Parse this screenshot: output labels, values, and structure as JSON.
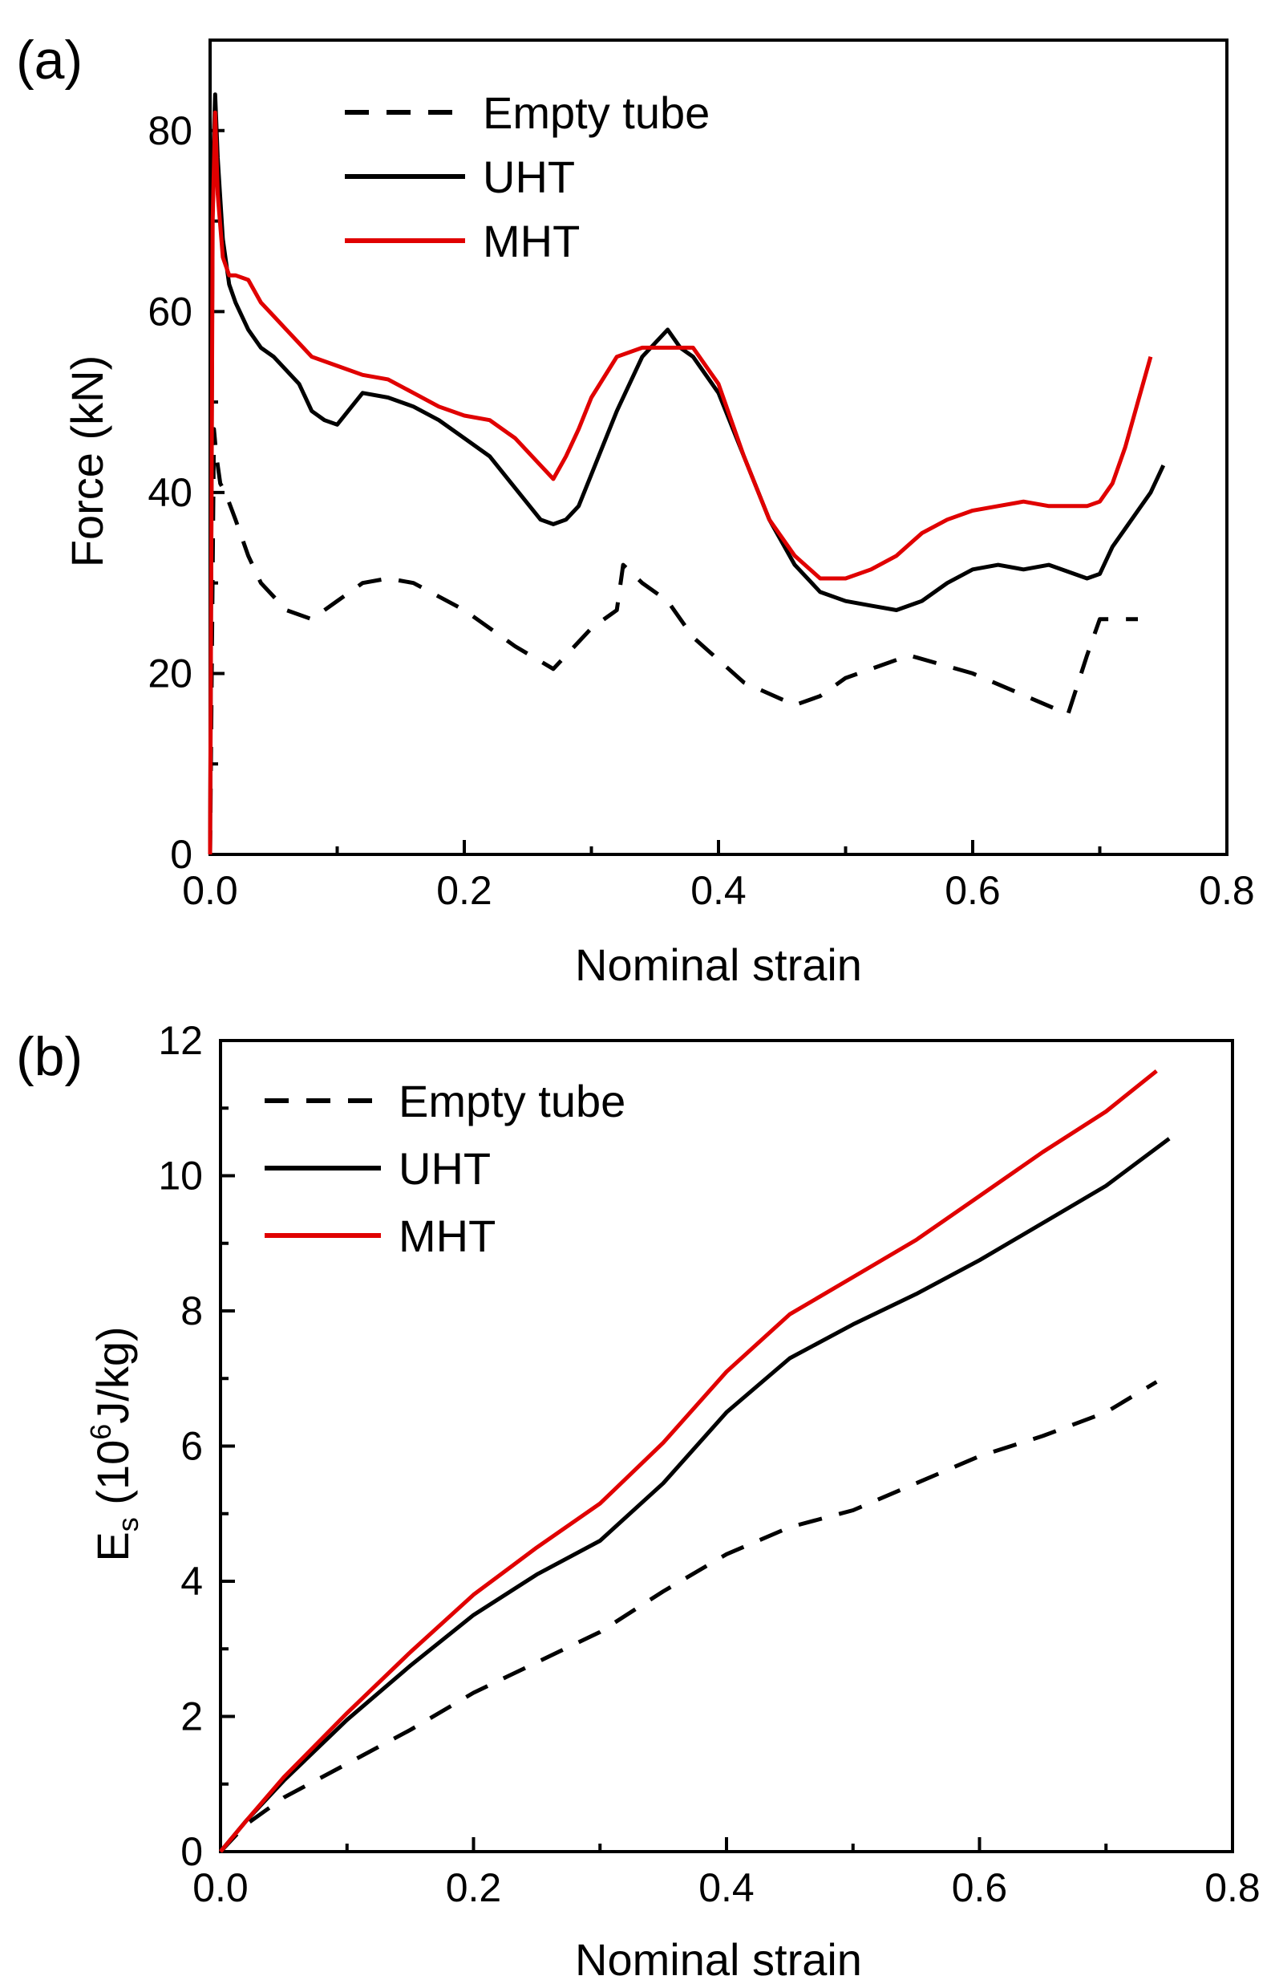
{
  "chart_data": [
    {
      "panel": "(a)",
      "type": "line",
      "xlabel": "Nominal strain",
      "ylabel": "Force (kN)",
      "xlim": [
        0,
        0.8
      ],
      "ylim": [
        0,
        90
      ],
      "xticks": [
        "0.0",
        "0.2",
        "0.4",
        "0.6",
        "0.8"
      ],
      "yticks": [
        "0",
        "20",
        "40",
        "60",
        "80"
      ],
      "legend_position": "top-right",
      "series": [
        {
          "name": "Empty tube",
          "color": "#000000",
          "style": "dashed",
          "x": [
            0,
            0.003,
            0.005,
            0.008,
            0.012,
            0.02,
            0.03,
            0.04,
            0.06,
            0.08,
            0.1,
            0.12,
            0.14,
            0.16,
            0.2,
            0.24,
            0.27,
            0.3,
            0.32,
            0.325,
            0.34,
            0.36,
            0.38,
            0.42,
            0.46,
            0.48,
            0.5,
            0.55,
            0.6,
            0.65,
            0.675,
            0.69,
            0.7,
            0.72,
            0.73
          ],
          "y": [
            0,
            47,
            44,
            41,
            40,
            37,
            33,
            30,
            27,
            26,
            28,
            30,
            30.5,
            30,
            27,
            23,
            20.5,
            25,
            27,
            32,
            30,
            28,
            24,
            19,
            16.5,
            17.5,
            19.5,
            22,
            20,
            17,
            15.5,
            22,
            26,
            26,
            26
          ]
        },
        {
          "name": "UHT",
          "color": "#000000",
          "style": "solid",
          "x": [
            0,
            0.002,
            0.004,
            0.006,
            0.01,
            0.015,
            0.02,
            0.03,
            0.04,
            0.05,
            0.06,
            0.07,
            0.08,
            0.09,
            0.1,
            0.12,
            0.14,
            0.16,
            0.18,
            0.2,
            0.22,
            0.24,
            0.26,
            0.27,
            0.28,
            0.29,
            0.3,
            0.32,
            0.34,
            0.36,
            0.37,
            0.38,
            0.4,
            0.42,
            0.44,
            0.46,
            0.48,
            0.5,
            0.52,
            0.54,
            0.56,
            0.58,
            0.6,
            0.62,
            0.64,
            0.66,
            0.68,
            0.69,
            0.7,
            0.71,
            0.72,
            0.74,
            0.75
          ],
          "y": [
            0,
            75,
            84,
            77,
            68,
            63,
            61,
            58,
            56,
            55,
            53.5,
            52,
            49,
            48,
            47.5,
            51,
            50.5,
            49.5,
            48,
            46,
            44,
            40.5,
            37,
            36.5,
            37,
            38.5,
            42,
            49,
            55,
            58,
            56,
            55,
            51,
            44,
            37,
            32,
            29,
            28,
            27.5,
            27,
            28,
            30,
            31.5,
            32,
            31.5,
            32,
            31,
            30.5,
            31,
            34,
            36,
            40,
            43
          ]
        },
        {
          "name": "MHT",
          "color": "#e00000",
          "style": "solid",
          "x": [
            0,
            0.002,
            0.004,
            0.006,
            0.01,
            0.015,
            0.02,
            0.03,
            0.04,
            0.05,
            0.06,
            0.08,
            0.1,
            0.12,
            0.14,
            0.16,
            0.18,
            0.2,
            0.22,
            0.24,
            0.26,
            0.27,
            0.28,
            0.29,
            0.3,
            0.32,
            0.34,
            0.36,
            0.38,
            0.4,
            0.42,
            0.44,
            0.46,
            0.48,
            0.5,
            0.52,
            0.54,
            0.56,
            0.58,
            0.6,
            0.62,
            0.64,
            0.66,
            0.68,
            0.69,
            0.7,
            0.71,
            0.72,
            0.73,
            0.74
          ],
          "y": [
            0,
            70,
            82,
            73,
            66,
            64,
            64,
            63.5,
            61,
            59.5,
            58,
            55,
            54,
            53,
            52.5,
            51,
            49.5,
            48.5,
            48,
            46,
            43,
            41.5,
            44,
            47,
            50.5,
            55,
            56,
            56,
            56,
            52,
            44,
            37,
            33,
            30.5,
            30.5,
            31.5,
            33,
            35.5,
            37,
            38,
            38.5,
            39,
            38.5,
            38.5,
            38.5,
            39,
            41,
            45,
            50,
            55
          ]
        }
      ]
    },
    {
      "panel": "(b)",
      "type": "line",
      "xlabel": "Nominal strain",
      "ylabel_main": "E",
      "ylabel_sub": "s",
      "ylabel_rest": " (10",
      "ylabel_sup": "6",
      "ylabel_end": "J/kg)",
      "xlim": [
        0,
        0.8
      ],
      "ylim": [
        0,
        12
      ],
      "xticks": [
        "0.0",
        "0.2",
        "0.4",
        "0.6",
        "0.8"
      ],
      "yticks": [
        "0",
        "2",
        "4",
        "6",
        "8",
        "10",
        "12"
      ],
      "legend_position": "top-left",
      "series": [
        {
          "name": "Empty tube",
          "color": "#000000",
          "style": "dashed",
          "x": [
            0,
            0.02,
            0.05,
            0.1,
            0.15,
            0.2,
            0.25,
            0.3,
            0.35,
            0.4,
            0.45,
            0.5,
            0.55,
            0.6,
            0.65,
            0.7,
            0.74
          ],
          "y": [
            0,
            0.4,
            0.8,
            1.3,
            1.8,
            2.35,
            2.8,
            3.25,
            3.85,
            4.4,
            4.8,
            5.05,
            5.45,
            5.85,
            6.15,
            6.5,
            6.95
          ]
        },
        {
          "name": "UHT",
          "color": "#000000",
          "style": "solid",
          "x": [
            0,
            0.02,
            0.05,
            0.1,
            0.15,
            0.2,
            0.25,
            0.3,
            0.35,
            0.4,
            0.45,
            0.5,
            0.55,
            0.6,
            0.65,
            0.7,
            0.75
          ],
          "y": [
            0,
            0.45,
            1.05,
            1.95,
            2.75,
            3.5,
            4.1,
            4.6,
            5.45,
            6.5,
            7.3,
            7.8,
            8.25,
            8.75,
            9.3,
            9.85,
            10.55
          ]
        },
        {
          "name": "MHT",
          "color": "#e00000",
          "style": "solid",
          "x": [
            0,
            0.02,
            0.05,
            0.1,
            0.15,
            0.2,
            0.25,
            0.3,
            0.35,
            0.4,
            0.45,
            0.5,
            0.55,
            0.6,
            0.65,
            0.7,
            0.74
          ],
          "y": [
            0,
            0.45,
            1.1,
            2.05,
            2.95,
            3.8,
            4.5,
            5.15,
            6.05,
            7.1,
            7.95,
            8.5,
            9.05,
            9.7,
            10.35,
            10.95,
            11.55
          ]
        }
      ]
    }
  ]
}
